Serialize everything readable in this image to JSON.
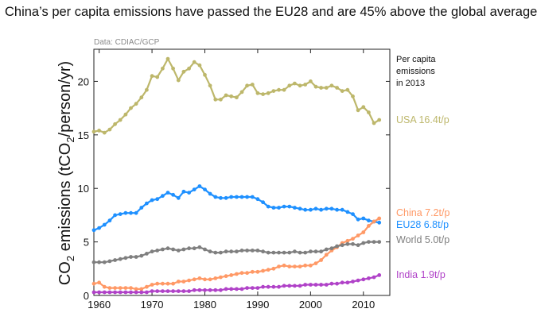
{
  "title": "China’s per capita emissions have passed the EU28 and are 45% above the global average",
  "source": "Data: CDIAC/GCP",
  "chart_data": {
    "type": "line",
    "ylabel_main": "CO",
    "ylabel_sub1": "2",
    "ylabel_rest1": " emissions (tCO",
    "ylabel_sub2": "2",
    "ylabel_rest2": "/person/yr)",
    "xlim": [
      1959,
      2015
    ],
    "ylim": [
      0,
      23
    ],
    "xticks": [
      1960,
      1970,
      1980,
      1990,
      2000,
      2010
    ],
    "yticks": [
      0,
      5,
      10,
      15,
      20
    ],
    "legend_title": [
      "Per capita",
      "emissions",
      "in 2013"
    ],
    "series": [
      {
        "name": "USA",
        "label": "USA 16.4t/p",
        "color": "#bdb76b",
        "x": [
          1959,
          1960,
          1961,
          1962,
          1963,
          1964,
          1965,
          1966,
          1967,
          1968,
          1969,
          1970,
          1971,
          1972,
          1973,
          1974,
          1975,
          1976,
          1977,
          1978,
          1979,
          1980,
          1981,
          1982,
          1983,
          1984,
          1985,
          1986,
          1987,
          1988,
          1989,
          1990,
          1991,
          1992,
          1993,
          1994,
          1995,
          1996,
          1997,
          1998,
          1999,
          2000,
          2001,
          2002,
          2003,
          2004,
          2005,
          2006,
          2007,
          2008,
          2009,
          2010,
          2011,
          2012,
          2013
        ],
        "y": [
          15.3,
          15.4,
          15.2,
          15.5,
          16.0,
          16.4,
          16.9,
          17.5,
          17.9,
          18.5,
          19.2,
          20.5,
          20.4,
          21.2,
          22.1,
          21.2,
          20.1,
          20.9,
          21.2,
          21.8,
          21.5,
          20.6,
          19.6,
          18.3,
          18.3,
          18.7,
          18.6,
          18.5,
          19.0,
          19.6,
          19.7,
          18.9,
          18.8,
          18.9,
          19.1,
          19.2,
          19.2,
          19.6,
          19.8,
          19.6,
          19.7,
          20.0,
          19.5,
          19.4,
          19.4,
          19.6,
          19.4,
          19.1,
          19.2,
          18.6,
          17.3,
          17.6,
          17.1,
          16.1,
          16.4
        ]
      },
      {
        "name": "EU28",
        "label": "EU28 6.8t/p",
        "color": "#1e90ff",
        "x": [
          1959,
          1960,
          1961,
          1962,
          1963,
          1964,
          1965,
          1966,
          1967,
          1968,
          1969,
          1970,
          1971,
          1972,
          1973,
          1974,
          1975,
          1976,
          1977,
          1978,
          1979,
          1980,
          1981,
          1982,
          1983,
          1984,
          1985,
          1986,
          1987,
          1988,
          1989,
          1990,
          1991,
          1992,
          1993,
          1994,
          1995,
          1996,
          1997,
          1998,
          1999,
          2000,
          2001,
          2002,
          2003,
          2004,
          2005,
          2006,
          2007,
          2008,
          2009,
          2010,
          2011,
          2012,
          2013
        ],
        "y": [
          6.1,
          6.3,
          6.6,
          7.0,
          7.5,
          7.6,
          7.7,
          7.7,
          7.7,
          8.2,
          8.6,
          8.9,
          9.0,
          9.3,
          9.6,
          9.4,
          9.1,
          9.7,
          9.6,
          9.9,
          10.2,
          9.9,
          9.5,
          9.2,
          9.1,
          9.1,
          9.2,
          9.2,
          9.2,
          9.2,
          9.2,
          9.0,
          8.7,
          8.3,
          8.2,
          8.2,
          8.3,
          8.3,
          8.2,
          8.1,
          8.0,
          8.0,
          8.1,
          8.0,
          8.1,
          8.1,
          8.0,
          8.0,
          7.8,
          7.6,
          7.1,
          7.2,
          7.0,
          6.9,
          6.8
        ]
      },
      {
        "name": "China",
        "label": "China 7.2t/p",
        "color": "#ff9966",
        "x": [
          1959,
          1960,
          1961,
          1962,
          1963,
          1964,
          1965,
          1966,
          1967,
          1968,
          1969,
          1970,
          1971,
          1972,
          1973,
          1974,
          1975,
          1976,
          1977,
          1978,
          1979,
          1980,
          1981,
          1982,
          1983,
          1984,
          1985,
          1986,
          1987,
          1988,
          1989,
          1990,
          1991,
          1992,
          1993,
          1994,
          1995,
          1996,
          1997,
          1998,
          1999,
          2000,
          2001,
          2002,
          2003,
          2004,
          2005,
          2006,
          2007,
          2008,
          2009,
          2010,
          2011,
          2012,
          2013
        ],
        "y": [
          1.1,
          1.2,
          0.8,
          0.7,
          0.7,
          0.7,
          0.7,
          0.7,
          0.6,
          0.6,
          0.8,
          1.0,
          1.1,
          1.1,
          1.1,
          1.1,
          1.3,
          1.3,
          1.4,
          1.5,
          1.6,
          1.5,
          1.5,
          1.6,
          1.7,
          1.8,
          1.9,
          2.0,
          2.1,
          2.1,
          2.2,
          2.2,
          2.3,
          2.4,
          2.5,
          2.7,
          2.8,
          2.7,
          2.7,
          2.7,
          2.8,
          2.8,
          3.0,
          3.3,
          3.8,
          4.2,
          4.5,
          4.9,
          5.1,
          5.3,
          5.6,
          5.9,
          6.5,
          6.9,
          7.2
        ]
      },
      {
        "name": "World",
        "label": "World 5.0t/p",
        "color": "#7f7f7f",
        "x": [
          1959,
          1960,
          1961,
          1962,
          1963,
          1964,
          1965,
          1966,
          1967,
          1968,
          1969,
          1970,
          1971,
          1972,
          1973,
          1974,
          1975,
          1976,
          1977,
          1978,
          1979,
          1980,
          1981,
          1982,
          1983,
          1984,
          1985,
          1986,
          1987,
          1988,
          1989,
          1990,
          1991,
          1992,
          1993,
          1994,
          1995,
          1996,
          1997,
          1998,
          1999,
          2000,
          2001,
          2002,
          2003,
          2004,
          2005,
          2006,
          2007,
          2008,
          2009,
          2010,
          2011,
          2012,
          2013
        ],
        "y": [
          3.1,
          3.1,
          3.1,
          3.2,
          3.3,
          3.4,
          3.5,
          3.6,
          3.6,
          3.7,
          3.9,
          4.1,
          4.2,
          4.3,
          4.4,
          4.3,
          4.2,
          4.3,
          4.4,
          4.4,
          4.5,
          4.3,
          4.1,
          4.0,
          4.0,
          4.1,
          4.1,
          4.1,
          4.2,
          4.2,
          4.2,
          4.2,
          4.1,
          4.0,
          4.0,
          4.0,
          4.0,
          4.0,
          4.1,
          4.0,
          4.0,
          4.1,
          4.1,
          4.1,
          4.3,
          4.4,
          4.6,
          4.7,
          4.8,
          4.8,
          4.7,
          4.9,
          5.0,
          5.0,
          5.0
        ]
      },
      {
        "name": "India",
        "label": "India 1.9t/p",
        "color": "#b042c8",
        "x": [
          1959,
          1960,
          1961,
          1962,
          1963,
          1964,
          1965,
          1966,
          1967,
          1968,
          1969,
          1970,
          1971,
          1972,
          1973,
          1974,
          1975,
          1976,
          1977,
          1978,
          1979,
          1980,
          1981,
          1982,
          1983,
          1984,
          1985,
          1986,
          1987,
          1988,
          1989,
          1990,
          1991,
          1992,
          1993,
          1994,
          1995,
          1996,
          1997,
          1998,
          1999,
          2000,
          2001,
          2002,
          2003,
          2004,
          2005,
          2006,
          2007,
          2008,
          2009,
          2010,
          2011,
          2012,
          2013
        ],
        "y": [
          0.3,
          0.3,
          0.3,
          0.3,
          0.3,
          0.3,
          0.3,
          0.3,
          0.3,
          0.3,
          0.3,
          0.4,
          0.4,
          0.4,
          0.4,
          0.4,
          0.4,
          0.4,
          0.4,
          0.5,
          0.5,
          0.5,
          0.5,
          0.5,
          0.5,
          0.6,
          0.6,
          0.6,
          0.6,
          0.7,
          0.7,
          0.7,
          0.8,
          0.8,
          0.8,
          0.8,
          0.9,
          0.9,
          0.9,
          0.9,
          1.0,
          1.0,
          1.0,
          1.0,
          1.0,
          1.1,
          1.1,
          1.2,
          1.2,
          1.3,
          1.4,
          1.5,
          1.6,
          1.7,
          1.9
        ]
      }
    ]
  }
}
